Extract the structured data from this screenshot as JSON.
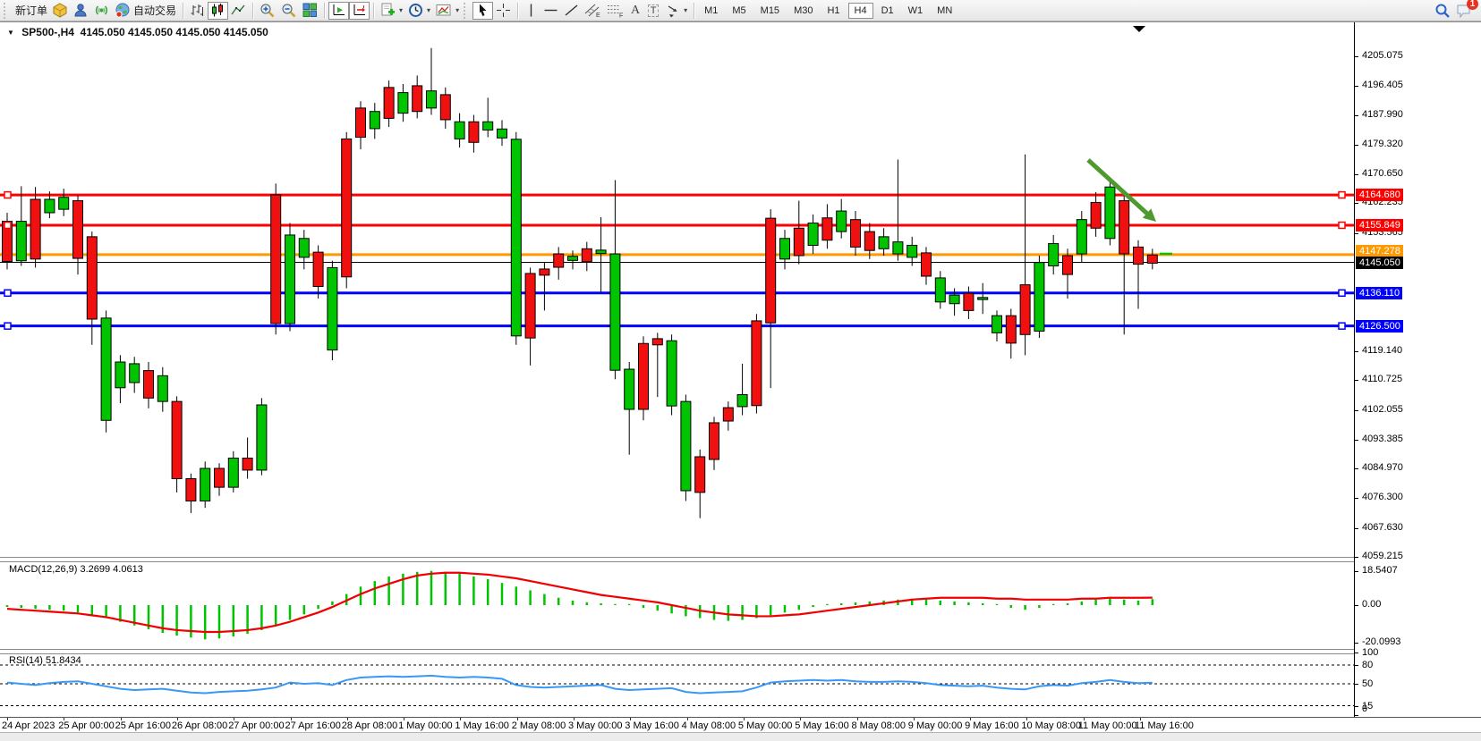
{
  "toolbar": {
    "new_order_label": "新订单",
    "autotrading_label": "自动交易",
    "timeframes": [
      "M1",
      "M5",
      "M15",
      "M30",
      "H1",
      "H4",
      "D1",
      "W1",
      "MN"
    ],
    "active_timeframe": "H4",
    "notification_count": "1",
    "glyph_a": "A",
    "glyph_t": "T",
    "glyph_e": "E",
    "glyph_f": "F"
  },
  "chart": {
    "title_symbol": "SP500-,H4",
    "title_ohlc": "4145.050 4145.050 4145.050 4145.050",
    "symbol": "SP500-",
    "period": "H4",
    "price_axis_ticks": [
      "4205.075",
      "4196.405",
      "4187.990",
      "4179.320",
      "4170.650",
      "4162.235",
      "4153.565",
      "4119.140",
      "4110.725",
      "4102.055",
      "4093.385",
      "4084.970",
      "4076.300",
      "4067.630",
      "4059.215"
    ],
    "hlines": [
      {
        "price": 4164.68,
        "label": "4164.680",
        "color": "#ff0000",
        "thickness": 3,
        "endpoints": true,
        "tag_dy": -7
      },
      {
        "price": 4155.849,
        "label": "4155.849",
        "color": "#ff0000",
        "thickness": 3,
        "endpoints": true,
        "tag_dy": -7
      },
      {
        "price": 4147.278,
        "label": "4147.278",
        "color": "#ff9900",
        "thickness": 3,
        "endpoints": false,
        "tag_dy": -11
      },
      {
        "price": 4145.05,
        "label": "4145.050",
        "color": "#000000",
        "thickness": 1,
        "endpoints": false,
        "tag_dy": -6
      },
      {
        "price": 4136.11,
        "label": "4136.110",
        "color": "#0000ff",
        "thickness": 3,
        "endpoints": true,
        "tag_dy": -7
      },
      {
        "price": 4126.5,
        "label": "4126.500",
        "color": "#0000ff",
        "thickness": 3,
        "endpoints": true,
        "tag_dy": -7
      }
    ],
    "time_labels": [
      "24 Apr 2023",
      "25 Apr 00:00",
      "25 Apr 16:00",
      "26 Apr 08:00",
      "27 Apr 00:00",
      "27 Apr 16:00",
      "28 Apr 08:00",
      "1 May 00:00",
      "1 May 16:00",
      "2 May 08:00",
      "3 May 00:00",
      "3 May 16:00",
      "4 May 08:00",
      "5 May 00:00",
      "5 May 16:00",
      "8 May 08:00",
      "9 May 00:00",
      "9 May 16:00",
      "10 May 08:00",
      "11 May 00:00",
      "11 May 16:00"
    ],
    "arrow_color": "#4e9a2e",
    "up_color": "#00c400",
    "down_color": "#f01010",
    "last_tick_price": 4147.6
  },
  "macd": {
    "label": "MACD(12,26,9) 3.2699 4.0613",
    "axis": [
      {
        "v": 18.5407,
        "label": "18.5407"
      },
      {
        "v": 0,
        "label": "0.00"
      },
      {
        "v": -20.0993,
        "label": "-20.0993"
      }
    ],
    "hist_color": "#00c400",
    "signal_color": "#f00000"
  },
  "rsi": {
    "label": "RSI(14) 51.8434",
    "axis": [
      {
        "v": 100,
        "label": "100"
      },
      {
        "v": 80,
        "label": "80"
      },
      {
        "v": 50,
        "label": "50"
      },
      {
        "v": 15,
        "label": "15"
      },
      {
        "v": 0,
        "label": "0"
      }
    ],
    "levels": [
      80,
      50,
      15
    ],
    "line_color": "#3898f8"
  },
  "chart_data": {
    "type": "candlestick",
    "title": "SP500- H4",
    "x_start_label": "24 Apr 2023 08:00",
    "candles": [
      [
        4157.0,
        4159.5,
        4143.0,
        4145.3
      ],
      [
        4145.5,
        4167.2,
        4144.0,
        4157.0
      ],
      [
        4163.4,
        4167.0,
        4143.5,
        4146.0
      ],
      [
        4159.5,
        4165.7,
        4157.9,
        4163.4
      ],
      [
        4160.5,
        4166.5,
        4158.5,
        4164.0
      ],
      [
        4163.0,
        4164.5,
        4141.5,
        4146.2
      ],
      [
        4152.5,
        4154.0,
        4121.0,
        4128.5
      ],
      [
        4099.0,
        4131.0,
        4095.5,
        4128.8
      ],
      [
        4108.5,
        4118.0,
        4104.0,
        4116.0
      ],
      [
        4110.0,
        4117.5,
        4107.0,
        4115.5
      ],
      [
        4113.5,
        4116.0,
        4102.5,
        4105.5
      ],
      [
        4104.5,
        4114.5,
        4101.5,
        4112.0
      ],
      [
        4104.5,
        4106.0,
        4078.0,
        4082.0
      ],
      [
        4082.0,
        4083.5,
        4072.0,
        4075.5
      ],
      [
        4075.5,
        4087.0,
        4073.5,
        4085.0
      ],
      [
        4085.0,
        4086.5,
        4077.0,
        4079.5
      ],
      [
        4079.5,
        4090.0,
        4078.0,
        4088.0
      ],
      [
        4088.0,
        4094.0,
        4082.0,
        4084.5
      ],
      [
        4084.5,
        4105.5,
        4083.0,
        4103.5
      ],
      [
        4164.7,
        4168.0,
        4124.0,
        4127.2
      ],
      [
        4127.2,
        4156.5,
        4125.0,
        4153.0
      ],
      [
        4146.5,
        4154.5,
        4143.0,
        4152.0
      ],
      [
        4148.0,
        4150.0,
        4134.5,
        4138.0
      ],
      [
        4119.5,
        4145.5,
        4116.5,
        4143.5
      ],
      [
        4181.0,
        4183.0,
        4137.5,
        4140.8
      ],
      [
        4190.0,
        4192.0,
        4178.0,
        4181.5
      ],
      [
        4184.0,
        4191.5,
        4181.0,
        4189.0
      ],
      [
        4196.0,
        4198.0,
        4184.5,
        4187.0
      ],
      [
        4188.5,
        4197.0,
        4186.0,
        4194.5
      ],
      [
        4196.5,
        4199.5,
        4187.0,
        4189.0
      ],
      [
        4190.0,
        4207.5,
        4188.0,
        4195.0
      ],
      [
        4193.9,
        4196.0,
        4184.0,
        4186.6
      ],
      [
        4181.0,
        4188.5,
        4178.5,
        4186.0
      ],
      [
        4186.0,
        4188.0,
        4177.0,
        4180.0
      ],
      [
        4183.6,
        4193.0,
        4181.5,
        4186.0
      ],
      [
        4181.3,
        4186.5,
        4179.0,
        4183.9
      ],
      [
        4123.6,
        4183.0,
        4121.0,
        4180.9
      ],
      [
        4141.8,
        4143.5,
        4115.0,
        4123.0
      ],
      [
        4143.1,
        4145.0,
        4131.0,
        4141.3
      ],
      [
        4147.5,
        4149.5,
        4140.0,
        4143.6
      ],
      [
        4145.6,
        4148.5,
        4143.0,
        4146.8
      ],
      [
        4149.0,
        4151.0,
        4142.5,
        4145.2
      ],
      [
        4147.6,
        4158.2,
        4136.2,
        4148.6
      ],
      [
        4113.6,
        4169.0,
        4111.0,
        4147.5
      ],
      [
        4102.2,
        4116.0,
        4089.0,
        4113.9
      ],
      [
        4121.4,
        4123.5,
        4099.0,
        4102.2
      ],
      [
        4122.8,
        4124.5,
        4105.8,
        4121.0
      ],
      [
        4103.2,
        4124.0,
        4100.5,
        4122.2
      ],
      [
        4078.5,
        4106.5,
        4075.5,
        4104.5
      ],
      [
        4088.4,
        4090.5,
        4070.5,
        4078.0
      ],
      [
        4098.3,
        4100.0,
        4084.5,
        4087.6
      ],
      [
        4102.7,
        4104.5,
        4096.0,
        4098.8
      ],
      [
        4103.0,
        4115.5,
        4100.5,
        4106.5
      ],
      [
        4128.0,
        4130.0,
        4101.0,
        4103.3
      ],
      [
        4157.9,
        4160.5,
        4108.4,
        4127.4
      ],
      [
        4146.0,
        4154.5,
        4143.0,
        4152.0
      ],
      [
        4155.0,
        4163.0,
        4144.5,
        4147.0
      ],
      [
        4150.0,
        4159.0,
        4147.5,
        4156.5
      ],
      [
        4158.0,
        4162.0,
        4149.0,
        4151.5
      ],
      [
        4154.0,
        4163.5,
        4152.0,
        4160.0
      ],
      [
        4157.5,
        4160.0,
        4147.0,
        4149.5
      ],
      [
        4154.0,
        4156.5,
        4146.0,
        4148.5
      ],
      [
        4149.0,
        4155.0,
        4147.0,
        4152.5
      ],
      [
        4147.5,
        4175.0,
        4145.5,
        4151.0
      ],
      [
        4146.5,
        4152.5,
        4144.0,
        4150.0
      ],
      [
        4147.8,
        4149.5,
        4138.5,
        4141.0
      ],
      [
        4133.5,
        4142.5,
        4131.5,
        4140.5
      ],
      [
        4133.0,
        4137.5,
        4129.5,
        4135.5
      ],
      [
        4136.0,
        4138.0,
        4128.5,
        4131.0
      ],
      [
        4134.2,
        4139.0,
        4130.0,
        4134.8
      ],
      [
        4124.5,
        4131.0,
        4122.0,
        4129.5
      ],
      [
        4129.5,
        4131.5,
        4117.0,
        4121.5
      ],
      [
        4138.5,
        4176.5,
        4118.0,
        4124.0
      ],
      [
        4125.0,
        4147.0,
        4123.0,
        4145.0
      ],
      [
        4144.0,
        4153.0,
        4141.5,
        4150.5
      ],
      [
        4147.0,
        4149.0,
        4134.5,
        4141.5
      ],
      [
        4147.5,
        4160.0,
        4145.0,
        4157.5
      ],
      [
        4162.5,
        4165.5,
        4152.5,
        4155.0
      ],
      [
        4152.0,
        4169.5,
        4150.0,
        4167.0
      ],
      [
        4163.0,
        4165.0,
        4124.0,
        4147.5
      ],
      [
        4149.5,
        4151.5,
        4131.5,
        4144.5
      ],
      [
        4147.2,
        4149.0,
        4143.0,
        4144.8
      ]
    ],
    "macd_hist": [
      -1,
      -1.5,
      -2,
      -2.5,
      -3,
      -4,
      -5.5,
      -7,
      -9,
      -11,
      -13,
      -15,
      -16.5,
      -17.5,
      -18.5,
      -18,
      -17,
      -15.5,
      -13.5,
      -11,
      -8,
      -5,
      -2,
      2,
      6,
      10,
      13,
      15.5,
      17,
      18,
      18.5,
      18,
      17,
      15.5,
      14,
      12,
      10,
      8,
      6,
      4,
      2.5,
      1.5,
      1,
      0.5,
      -0.5,
      -1.5,
      -3,
      -4.5,
      -6,
      -7,
      -8,
      -8.5,
      -8,
      -7,
      -5.5,
      -4,
      -2.5,
      -1,
      0,
      1,
      1.5,
      2,
      2.5,
      3,
      3.5,
      3,
      2.5,
      2,
      1.5,
      1,
      -0.5,
      -1.5,
      -2.5,
      -1.5,
      -0.5,
      1,
      2,
      3,
      3.5,
      3,
      2.5,
      3.3
    ],
    "macd_signal": [
      -2,
      -2.5,
      -3,
      -3.5,
      -4,
      -4.5,
      -5.5,
      -6.5,
      -8,
      -9.5,
      -11,
      -12.5,
      -13.5,
      -14,
      -14.5,
      -14.5,
      -14,
      -13.5,
      -12.5,
      -11,
      -9,
      -6.5,
      -4,
      -1,
      2.5,
      6,
      9,
      11.5,
      14,
      16,
      17,
      17.5,
      17.5,
      17,
      16.5,
      15.5,
      14.5,
      13,
      11.5,
      10,
      8.5,
      7,
      5.5,
      4.5,
      3.5,
      2.5,
      1.5,
      0,
      -1.5,
      -3,
      -4,
      -5,
      -5.5,
      -6,
      -6,
      -5.5,
      -5,
      -4,
      -3,
      -2,
      -1,
      0,
      1,
      2,
      3,
      3.5,
      4,
      4,
      4,
      4,
      3.5,
      3.5,
      3,
      3,
      3,
      3,
      3.5,
      3.5,
      4,
      4,
      4,
      4.06
    ],
    "rsi_values": [
      52,
      50,
      48,
      51,
      53,
      54,
      50,
      46,
      42,
      40,
      41,
      42,
      39,
      36,
      35,
      37,
      38,
      39,
      41,
      44,
      52,
      50,
      51,
      48,
      56,
      60,
      61,
      62,
      61,
      62,
      63,
      61,
      60,
      61,
      60,
      58,
      48,
      45,
      44,
      45,
      46,
      47,
      48,
      42,
      40,
      41,
      42,
      43,
      37,
      35,
      36,
      37,
      38,
      44,
      52,
      54,
      55,
      56,
      55,
      56,
      54,
      53,
      53,
      54,
      53,
      51,
      48,
      47,
      46,
      47,
      44,
      42,
      41,
      46,
      48,
      47,
      51,
      53,
      56,
      53,
      51,
      51.8
    ]
  }
}
